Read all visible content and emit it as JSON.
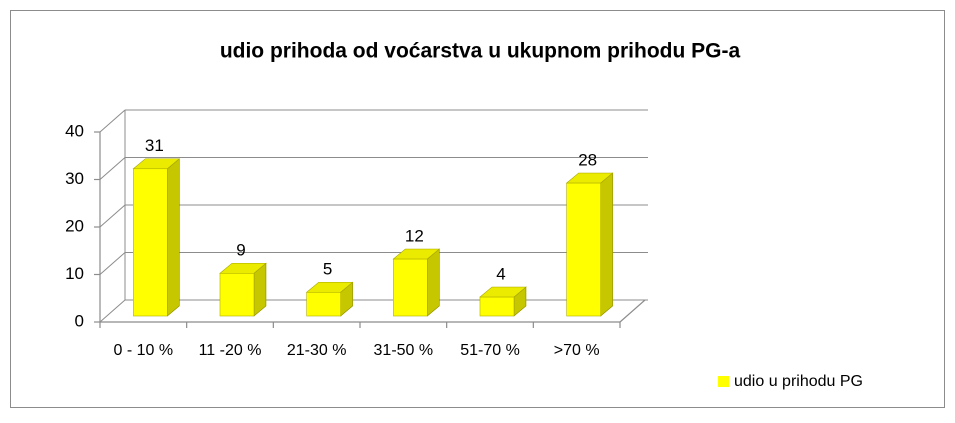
{
  "chart_data": {
    "type": "bar3d",
    "title": "udio prihoda od voćarstva u ukupnom prihodu PG-a",
    "categories": [
      "0 - 10 %",
      "11 -20 %",
      "21-30 %",
      "31-50 %",
      "51-70 %",
      ">70 %"
    ],
    "series": [
      {
        "name": "udio u prihodu PG",
        "color": "#ffff00",
        "values": [
          31,
          9,
          5,
          12,
          4,
          28
        ]
      }
    ],
    "ylim": [
      0,
      40
    ],
    "yticks": [
      0,
      10,
      20,
      30,
      40
    ],
    "grid": true,
    "legend": "bottom-right"
  }
}
